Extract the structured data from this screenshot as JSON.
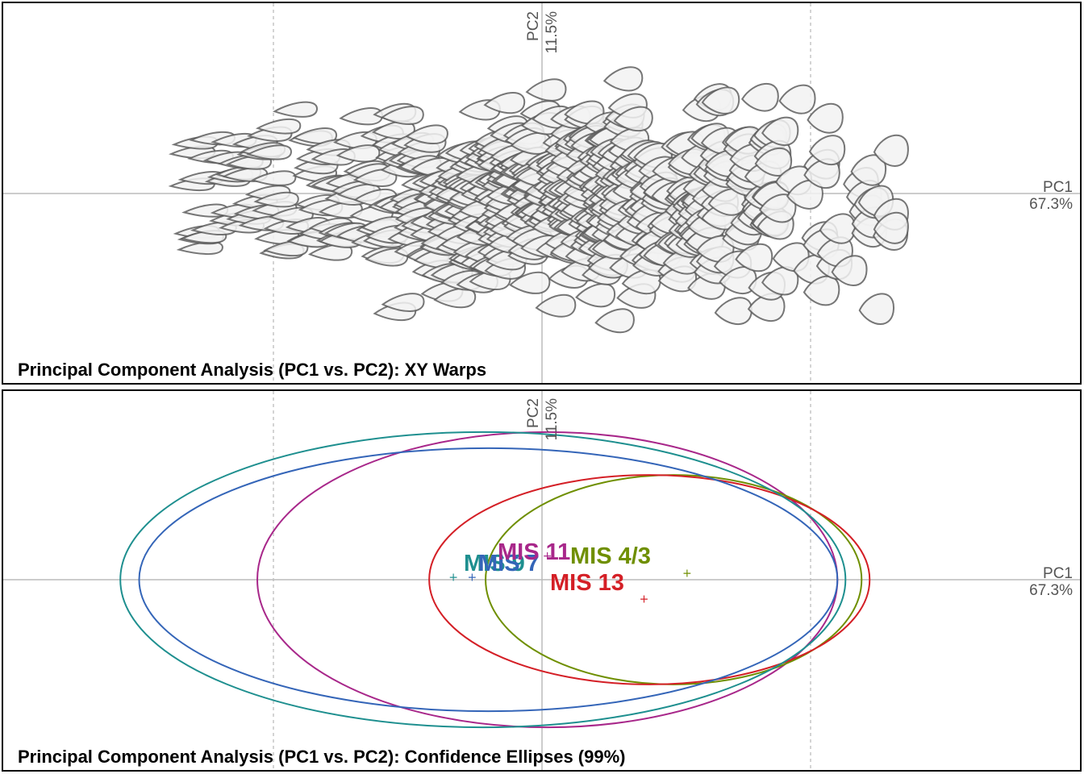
{
  "chart_data": [
    {
      "type": "scatter",
      "marker": "xy-warp-outline",
      "title": "Principal Component Analysis (PC1 vs. PC2): XY Warps",
      "xlabel": "PC1",
      "xlabel_pct": "67.3%",
      "ylabel": "PC2",
      "ylabel_pct": "11.5%",
      "xlim": [
        -1.0,
        1.8
      ],
      "ylim": [
        -0.72,
        0.78
      ],
      "x_dashed_gridlines": [
        -1.0,
        1.0
      ],
      "n_points": 620,
      "point_cloud": {
        "x_range": [
          -1.47,
          1.3
        ],
        "y_range": [
          -0.68,
          0.75
        ]
      },
      "legend": "none"
    },
    {
      "type": "scatter",
      "marker": "confidence-ellipse",
      "title": "Principal Component Analysis (PC1 vs. PC2): Confidence Ellipses (99%)",
      "xlabel": "PC1",
      "xlabel_pct": "67.3%",
      "ylabel": "PC2",
      "ylabel_pct": "11.5%",
      "xlim": [
        -1.0,
        1.8
      ],
      "ylim": [
        -0.72,
        0.78
      ],
      "x_dashed_gridlines": [
        -1.0,
        1.0
      ],
      "confidence": "99%",
      "series": [
        {
          "name": "MIS 11",
          "label": "MIS 11",
          "color": "#a8278a",
          "mean": [
            0.02,
            0.09
          ],
          "ellipse": {
            "cx": 0.02,
            "cy": 0.0,
            "rx": 1.08,
            "ry": 0.55
          }
        },
        {
          "name": "MIS 4/3",
          "label": "MIS 4/3",
          "color": "#6f8f00",
          "mean": [
            0.54,
            0.025
          ],
          "ellipse": {
            "cx": 0.49,
            "cy": 0.0,
            "rx": 0.7,
            "ry": 0.39
          }
        },
        {
          "name": "MIS 13",
          "label": "MIS 13",
          "color": "#d41f26",
          "mean": [
            0.38,
            -0.07
          ],
          "ellipse": {
            "cx": 0.4,
            "cy": 0.0,
            "rx": 0.82,
            "ry": 0.39
          }
        },
        {
          "name": "MIS 7",
          "label": "MIS 7",
          "color": "#3465b8",
          "mean": [
            -0.26,
            0.01
          ],
          "ellipse": {
            "cx": -0.2,
            "cy": 0.0,
            "rx": 1.3,
            "ry": 0.49
          }
        },
        {
          "name": "MIS 9",
          "label": "MIS 9",
          "color": "#1e8f8f",
          "mean": [
            -0.33,
            0.01
          ],
          "ellipse": {
            "cx": -0.22,
            "cy": 0.0,
            "rx": 1.35,
            "ry": 0.55
          }
        }
      ],
      "legend": "none"
    }
  ]
}
